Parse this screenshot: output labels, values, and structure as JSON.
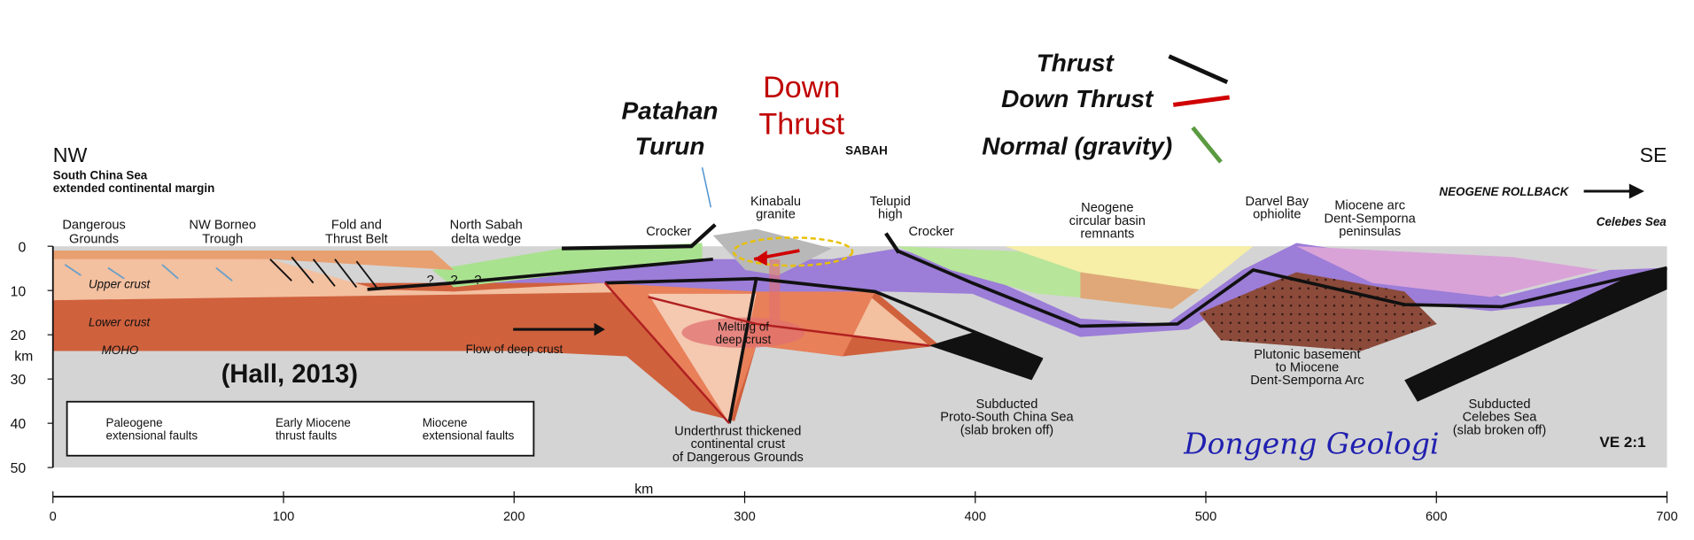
{
  "orientation": {
    "nw": "NW",
    "se": "SE"
  },
  "annotations": {
    "thrust": "Thrust",
    "down_thrust": "Down Thrust",
    "normal": "Normal (gravity)",
    "patahan_turun": [
      "Patahan",
      "Turun"
    ],
    "down_thrust_red": [
      "Down",
      "Thrust"
    ]
  },
  "labels": {
    "south_china_sea": [
      "South China Sea",
      "extended continental margin"
    ],
    "sabah": "SABAH",
    "neogene_rollback": "NEOGENE ROLLBACK",
    "celebes_sea": "Celebes Sea",
    "dangerous_grounds": [
      "Dangerous",
      "Grounds"
    ],
    "nw_borneo_trough": [
      "NW Borneo",
      "Trough"
    ],
    "fold_thrust_belt": [
      "Fold and",
      "Thrust Belt"
    ],
    "north_sabah": [
      "North Sabah",
      "delta wedge"
    ],
    "crocker_left": "Crocker",
    "kinabalu": [
      "Kinabalu",
      "granite"
    ],
    "telupid": [
      "Telupid",
      "high"
    ],
    "crocker_right": "Crocker",
    "neogene_basin": [
      "Neogene",
      "circular basin",
      "remnants"
    ],
    "darvel_bay": [
      "Darvel Bay",
      "ophiolite"
    ],
    "miocene_arc": [
      "Miocene arc",
      "Dent-Semporna",
      "peninsulas"
    ],
    "upper_crust": "Upper crust",
    "lower_crust": "Lower crust",
    "moho": "MOHO",
    "flow": "Flow of deep crust",
    "melting": [
      "Melting of",
      "deep crust"
    ],
    "underthrust": [
      "Underthrust thickened",
      "continental crust",
      "of Dangerous Grounds"
    ],
    "proto_scs": [
      "Subducted",
      "Proto-South China Sea",
      "(slab broken off)"
    ],
    "plutonic": [
      "Plutonic basement",
      "to Miocene",
      "Dent-Semporna Arc"
    ],
    "celebes_slab": [
      "Subducted",
      "Celebes Sea",
      "(slab broken off)"
    ],
    "questions": [
      "?",
      "?",
      "?"
    ],
    "ve": "VE 2:1",
    "citation": "(Hall, 2013)",
    "watermark": "Dongeng Geologi"
  },
  "legend": [
    [
      "Paleogene",
      "extensional faults"
    ],
    [
      "Early Miocene",
      "thrust faults"
    ],
    [
      "Miocene",
      "extensional faults"
    ]
  ],
  "axes": {
    "depth_label": "km",
    "depth_ticks": [
      0,
      10,
      20,
      30,
      40,
      50
    ],
    "depth_lim": [
      0,
      50
    ],
    "distance_label": "km",
    "distance_ticks": [
      0,
      100,
      200,
      300,
      400,
      500,
      600,
      700
    ],
    "distance_lim": [
      0,
      700
    ]
  }
}
